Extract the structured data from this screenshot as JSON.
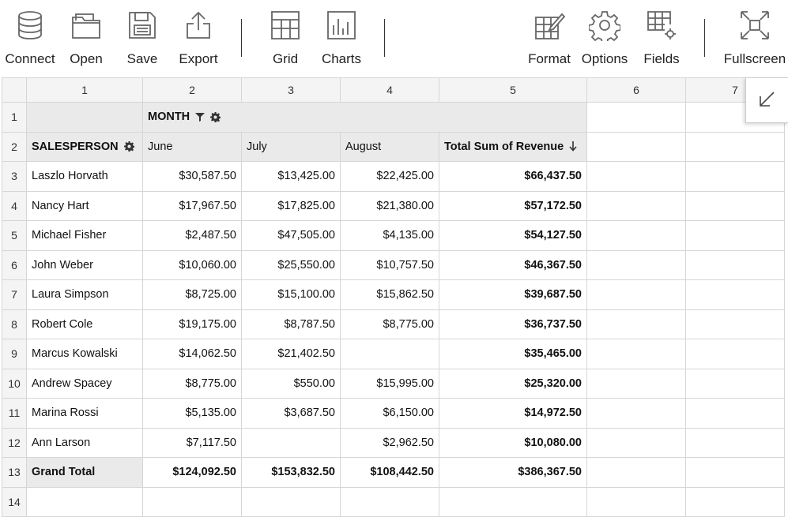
{
  "toolbar": {
    "left": [
      {
        "label": "Connect",
        "icon": "database-icon"
      },
      {
        "label": "Open",
        "icon": "folder-icon"
      },
      {
        "label": "Save",
        "icon": "floppy-disk-icon"
      },
      {
        "label": "Export",
        "icon": "export-icon"
      }
    ],
    "middle": [
      {
        "label": "Grid",
        "icon": "grid-icon"
      },
      {
        "label": "Charts",
        "icon": "bar-chart-icon"
      }
    ],
    "right": [
      {
        "label": "Format",
        "icon": "format-icon"
      },
      {
        "label": "Options",
        "icon": "gear-icon"
      },
      {
        "label": "Fields",
        "icon": "fields-icon"
      },
      {
        "label": "Fullscreen",
        "icon": "fullscreen-icon"
      }
    ]
  },
  "columns": [
    "1",
    "2",
    "3",
    "4",
    "5",
    "6",
    "7"
  ],
  "pivot": {
    "column_field": "MONTH",
    "row_field": "SALESPERSON",
    "months": [
      "June",
      "July",
      "August"
    ],
    "total_header": "Total Sum of Revenue",
    "rows": [
      {
        "name": "Laszlo Horvath",
        "values": [
          "$30,587.50",
          "$13,425.00",
          "$22,425.00"
        ],
        "total": "$66,437.50"
      },
      {
        "name": "Nancy Hart",
        "values": [
          "$17,967.50",
          "$17,825.00",
          "$21,380.00"
        ],
        "total": "$57,172.50"
      },
      {
        "name": "Michael Fisher",
        "values": [
          "$2,487.50",
          "$47,505.00",
          "$4,135.00"
        ],
        "total": "$54,127.50"
      },
      {
        "name": "John Weber",
        "values": [
          "$10,060.00",
          "$25,550.00",
          "$10,757.50"
        ],
        "total": "$46,367.50"
      },
      {
        "name": "Laura Simpson",
        "values": [
          "$8,725.00",
          "$15,100.00",
          "$15,862.50"
        ],
        "total": "$39,687.50"
      },
      {
        "name": "Robert Cole",
        "values": [
          "$19,175.00",
          "$8,787.50",
          "$8,775.00"
        ],
        "total": "$36,737.50"
      },
      {
        "name": "Marcus Kowalski",
        "values": [
          "$14,062.50",
          "$21,402.50",
          ""
        ],
        "total": "$35,465.00"
      },
      {
        "name": "Andrew Spacey",
        "values": [
          "$8,775.00",
          "$550.00",
          "$15,995.00"
        ],
        "total": "$25,320.00"
      },
      {
        "name": "Marina Rossi",
        "values": [
          "$5,135.00",
          "$3,687.50",
          "$6,150.00"
        ],
        "total": "$14,972.50"
      },
      {
        "name": "Ann Larson",
        "values": [
          "$7,117.50",
          "",
          "$2,962.50"
        ],
        "total": "$10,080.00"
      }
    ],
    "grand_total": {
      "name": "Grand Total",
      "values": [
        "$124,092.50",
        "$153,832.50",
        "$108,442.50"
      ],
      "total": "$386,367.50"
    }
  }
}
